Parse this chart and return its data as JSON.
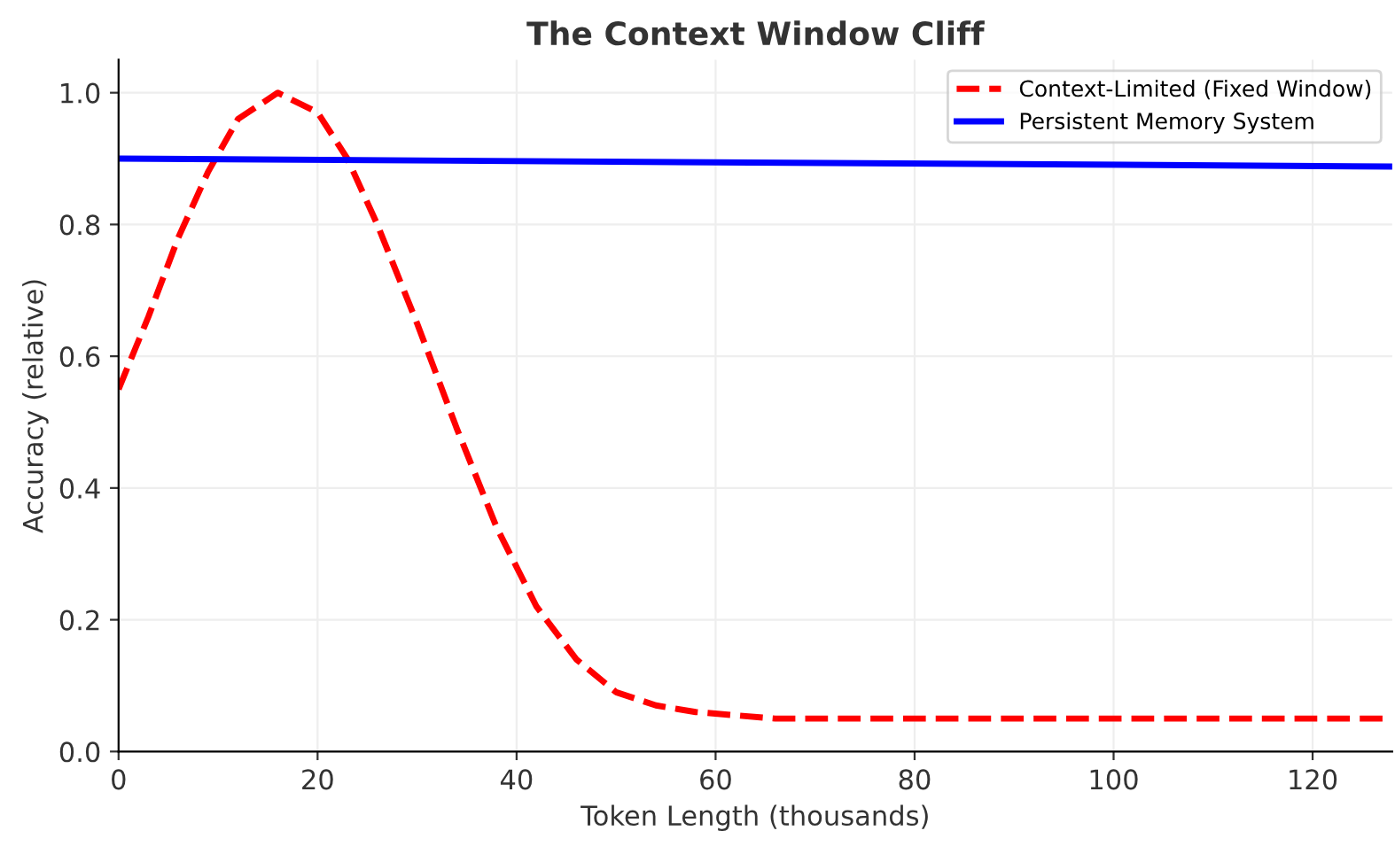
{
  "chart_data": {
    "type": "line",
    "title": "The Context Window Cliff",
    "xlabel": "Token Length (thousands)",
    "ylabel": "Accuracy (relative)",
    "series": [
      {
        "name": "Context-Limited (Fixed Window)",
        "color": "#ff0000",
        "line_style": "dashed",
        "x": [
          0,
          3,
          6,
          9,
          12,
          16,
          20,
          23,
          26,
          30,
          34,
          38,
          42,
          46,
          50,
          54,
          58,
          62,
          66,
          70,
          80,
          100,
          128
        ],
        "values": [
          0.55,
          0.66,
          0.78,
          0.88,
          0.96,
          1.0,
          0.97,
          0.9,
          0.8,
          0.65,
          0.49,
          0.34,
          0.22,
          0.14,
          0.09,
          0.07,
          0.06,
          0.055,
          0.05,
          0.05,
          0.05,
          0.05,
          0.05
        ]
      },
      {
        "name": "Persistent Memory System",
        "color": "#0000ff",
        "line_style": "solid",
        "x": [
          0,
          128
        ],
        "values": [
          0.9,
          0.888
        ]
      }
    ],
    "xlim": [
      0,
      128
    ],
    "ylim": [
      0,
      1.05
    ],
    "xticks": [
      0,
      20,
      40,
      60,
      80,
      100,
      120
    ],
    "yticks": [
      {
        "value": 0,
        "label": "0.0"
      },
      0.2,
      0.4,
      0.6,
      0.8,
      {
        "value": 1,
        "label": "1.0"
      }
    ],
    "grid": true,
    "legend": "top right"
  }
}
